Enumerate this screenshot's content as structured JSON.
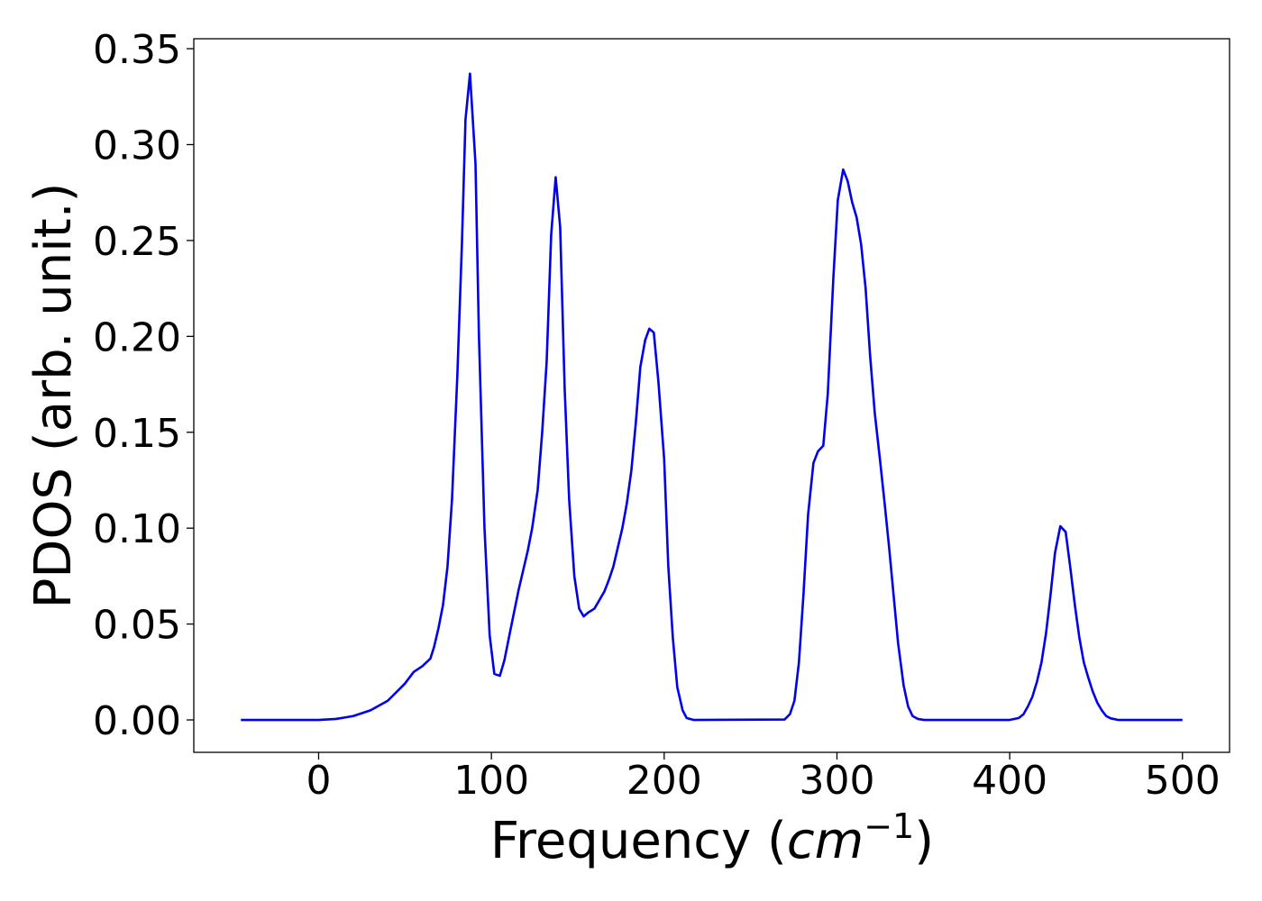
{
  "chart_data": {
    "type": "line",
    "xlabel": [
      "Frequency (",
      "cm",
      "−1",
      ")"
    ],
    "ylabel": "PDOS (arb. unit.)",
    "xlim": [
      -72.25,
      527.25
    ],
    "ylim": [
      -0.0169,
      0.3552
    ],
    "xticks": [
      0,
      100,
      200,
      300,
      400,
      500
    ],
    "yticks": [
      {
        "value": 0,
        "label": "0.00"
      },
      {
        "value": 0.05,
        "label": "0.05"
      },
      {
        "value": 0.1,
        "label": "0.10"
      },
      {
        "value": 0.15,
        "label": "0.15"
      },
      {
        "value": 0.2,
        "label": "0.20"
      },
      {
        "value": 0.25,
        "label": "0.25"
      },
      {
        "value": 0.3,
        "label": "0.30"
      },
      {
        "value": 0.35,
        "label": "0.35"
      }
    ],
    "series": [
      {
        "color": "#0000ee",
        "x": [
          -45,
          0,
          10,
          20,
          30,
          40,
          50,
          55,
          60,
          64.7,
          66.8,
          69.4,
          72,
          74.6,
          77.2,
          80.3,
          83,
          85,
          87.6,
          90.8,
          92.8,
          96,
          99,
          101.7,
          104.9,
          107.5,
          110.6,
          115.8,
          118.4,
          121,
          123.6,
          126.8,
          129.4,
          132,
          134.6,
          137.2,
          139.8,
          142.4,
          145,
          148,
          150.8,
          153.4,
          156,
          159.6,
          162.2,
          165.4,
          168,
          170.6,
          173.2,
          175.8,
          178.4,
          181,
          183.6,
          186.2,
          189,
          191.4,
          194,
          196.7,
          200,
          202.4,
          205,
          207.6,
          210.7,
          213,
          217,
          269.7,
          272.8,
          275.4,
          278,
          280.6,
          283.3,
          286.4,
          289,
          292.1,
          294.7,
          297.9,
          300.5,
          303.6,
          306.2,
          308.8,
          311.4,
          314,
          316.6,
          319.2,
          321.9,
          325,
          327.6,
          330.2,
          332.8,
          335.4,
          338.6,
          341.2,
          343.8,
          346.9,
          350.5,
          400,
          405.3,
          408,
          410.5,
          413.1,
          415.8,
          418.4,
          421,
          423.6,
          426.2,
          429.3,
          432.4,
          435,
          437.7,
          440.3,
          442.9,
          445.5,
          448,
          450.7,
          453.3,
          455.9,
          458.5,
          462.7,
          500
        ],
        "values": [
          0,
          0,
          0.0005,
          0.002,
          0.005,
          0.01,
          0.019,
          0.025,
          0.028,
          0.032,
          0.038,
          0.048,
          0.06,
          0.08,
          0.115,
          0.18,
          0.25,
          0.313,
          0.337,
          0.29,
          0.2,
          0.1,
          0.044,
          0.024,
          0.023,
          0.031,
          0.045,
          0.068,
          0.078,
          0.088,
          0.1,
          0.12,
          0.15,
          0.187,
          0.253,
          0.283,
          0.257,
          0.173,
          0.115,
          0.075,
          0.058,
          0.054,
          0.056,
          0.058,
          0.062,
          0.067,
          0.073,
          0.08,
          0.09,
          0.1,
          0.113,
          0.13,
          0.155,
          0.184,
          0.198,
          0.204,
          0.202,
          0.176,
          0.136,
          0.08,
          0.043,
          0.017,
          0.005,
          0.001,
          0,
          0.0002,
          0.003,
          0.01,
          0.03,
          0.065,
          0.107,
          0.134,
          0.14,
          0.143,
          0.17,
          0.23,
          0.271,
          0.287,
          0.281,
          0.27,
          0.262,
          0.248,
          0.225,
          0.19,
          0.16,
          0.135,
          0.113,
          0.09,
          0.065,
          0.04,
          0.018,
          0.007,
          0.002,
          0.0005,
          0,
          0,
          0.001,
          0.003,
          0.007,
          0.012,
          0.02,
          0.03,
          0.045,
          0.065,
          0.087,
          0.101,
          0.098,
          0.08,
          0.06,
          0.043,
          0.03,
          0.022,
          0.015,
          0.009,
          0.005,
          0.002,
          0.0008,
          0,
          0
        ]
      }
    ]
  }
}
